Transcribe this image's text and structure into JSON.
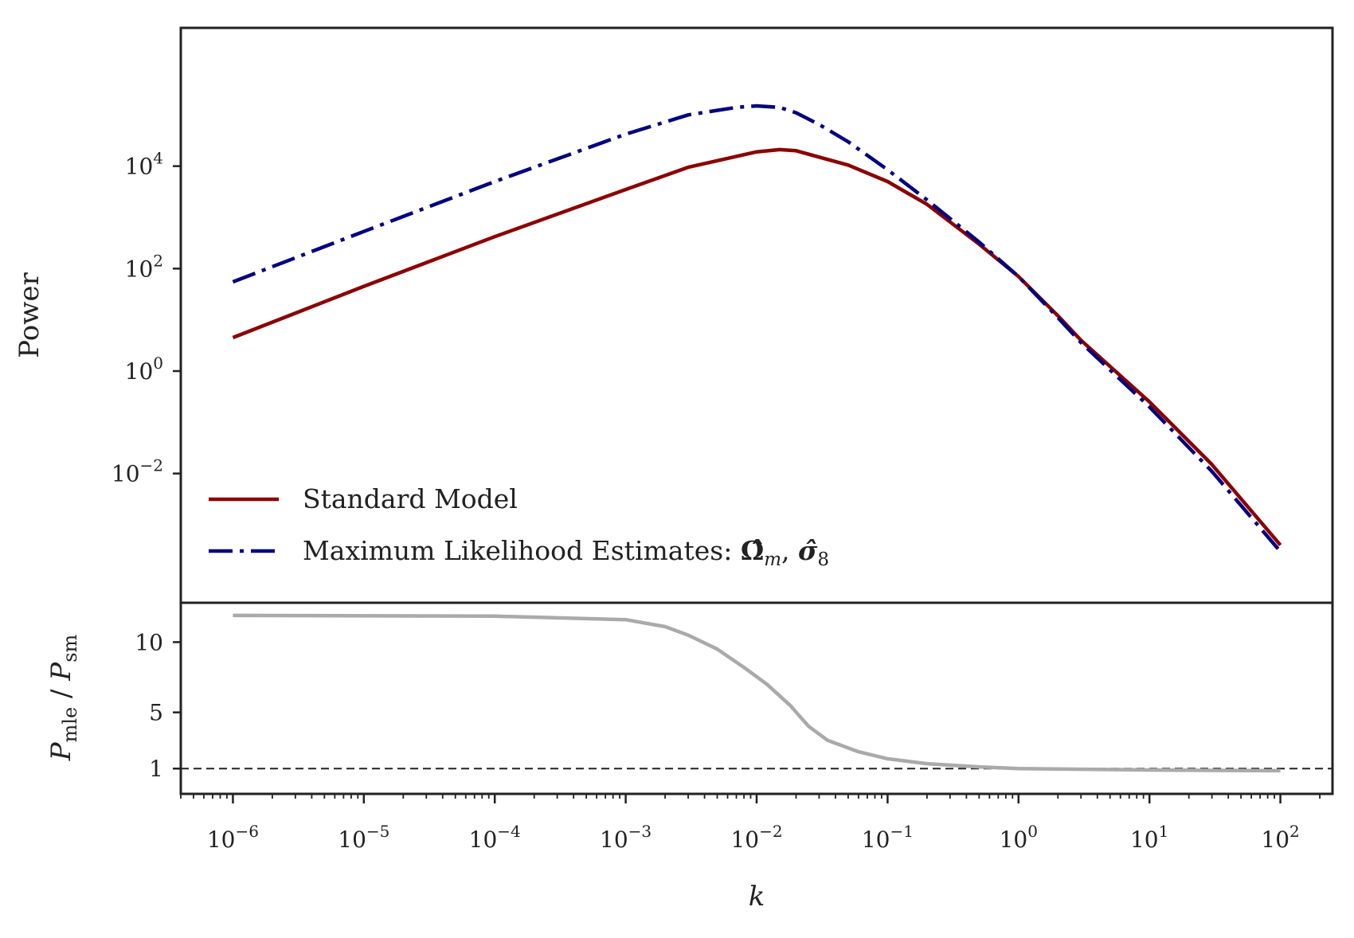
{
  "chart_data": [
    {
      "type": "line",
      "ylabel": "Power",
      "yscale": "log",
      "xscale": "log",
      "ylim": [
        3e-05,
        5000000
      ],
      "xlim": [
        4e-07,
        250
      ],
      "yticks": [
        {
          "value": 0.01,
          "base": "10",
          "exp": "−2"
        },
        {
          "value": 1,
          "base": "10",
          "exp": "0"
        },
        {
          "value": 100,
          "base": "10",
          "exp": "2"
        },
        {
          "value": 10000,
          "base": "10",
          "exp": "4"
        }
      ],
      "legend_position": "lower-left",
      "series": [
        {
          "name": "Standard Model",
          "color": "#8b0000",
          "style": "solid",
          "points": [
            [
              1e-06,
              4.5
            ],
            [
              1e-05,
              45
            ],
            [
              0.0001,
              420
            ],
            [
              0.001,
              3500
            ],
            [
              0.003,
              9500
            ],
            [
              0.01,
              19000
            ],
            [
              0.015,
              21000
            ],
            [
              0.02,
              20000
            ],
            [
              0.03,
              15000
            ],
            [
              0.05,
              10500
            ],
            [
              0.1,
              5000
            ],
            [
              0.2,
              1800
            ],
            [
              0.5,
              300
            ],
            [
              1,
              70
            ],
            [
              2,
              12
            ],
            [
              3,
              4
            ],
            [
              10,
              0.25
            ],
            [
              30,
              0.015
            ],
            [
              100,
              0.0004
            ]
          ]
        },
        {
          "name": "Maximum Likelihood Estimates: ",
          "name_math": [
            "Ω̂",
            "m",
            "σ̂",
            "8"
          ],
          "color": "#000080",
          "style": "dashdot",
          "points": [
            [
              1e-06,
              55
            ],
            [
              1e-05,
              530
            ],
            [
              0.0001,
              5000
            ],
            [
              0.001,
              42000
            ],
            [
              0.003,
              100000
            ],
            [
              0.007,
              140000
            ],
            [
              0.01,
              150000
            ],
            [
              0.015,
              140000
            ],
            [
              0.02,
              110000
            ],
            [
              0.03,
              65000
            ],
            [
              0.05,
              30000
            ],
            [
              0.1,
              8500
            ],
            [
              0.2,
              2200
            ],
            [
              0.5,
              330
            ],
            [
              1,
              70
            ],
            [
              2,
              11
            ],
            [
              3,
              3.6
            ],
            [
              10,
              0.2
            ],
            [
              30,
              0.011
            ],
            [
              100,
              0.0003
            ]
          ]
        }
      ]
    },
    {
      "type": "line",
      "ylabel_main": "P",
      "ylabel_sub1": "mle",
      "ylabel_sep": " / ",
      "ylabel_sub2": "sm",
      "xlabel": "k",
      "xscale": "log",
      "ylim": [
        -0.8,
        12.8
      ],
      "yticks": [
        {
          "value": 1,
          "label": "1"
        },
        {
          "value": 5,
          "label": "5"
        },
        {
          "value": 10,
          "label": "10"
        }
      ],
      "xticks": [
        {
          "value": 1e-06,
          "base": "10",
          "exp": "−6"
        },
        {
          "value": 1e-05,
          "base": "10",
          "exp": "−5"
        },
        {
          "value": 0.0001,
          "base": "10",
          "exp": "−4"
        },
        {
          "value": 0.001,
          "base": "10",
          "exp": "−3"
        },
        {
          "value": 0.01,
          "base": "10",
          "exp": "−2"
        },
        {
          "value": 0.1,
          "base": "10",
          "exp": "−1"
        },
        {
          "value": 1,
          "base": "10",
          "exp": "0"
        },
        {
          "value": 10,
          "base": "10",
          "exp": "1"
        },
        {
          "value": 100,
          "base": "10",
          "exp": "2"
        }
      ],
      "reference_line": {
        "value": 1,
        "color": "#222222",
        "style": "dashed"
      },
      "series": [
        {
          "color": "#aaaaaa",
          "style": "solid",
          "points": [
            [
              1e-06,
              11.9
            ],
            [
              0.0001,
              11.85
            ],
            [
              0.001,
              11.6
            ],
            [
              0.002,
              11.1
            ],
            [
              0.003,
              10.5
            ],
            [
              0.005,
              9.5
            ],
            [
              0.008,
              8.2
            ],
            [
              0.012,
              7.0
            ],
            [
              0.018,
              5.5
            ],
            [
              0.025,
              4.0
            ],
            [
              0.035,
              3.0
            ],
            [
              0.06,
              2.2
            ],
            [
              0.1,
              1.7
            ],
            [
              0.2,
              1.35
            ],
            [
              0.5,
              1.12
            ],
            [
              1,
              1.0
            ],
            [
              10,
              0.9
            ],
            [
              100,
              0.85
            ]
          ]
        }
      ]
    }
  ]
}
